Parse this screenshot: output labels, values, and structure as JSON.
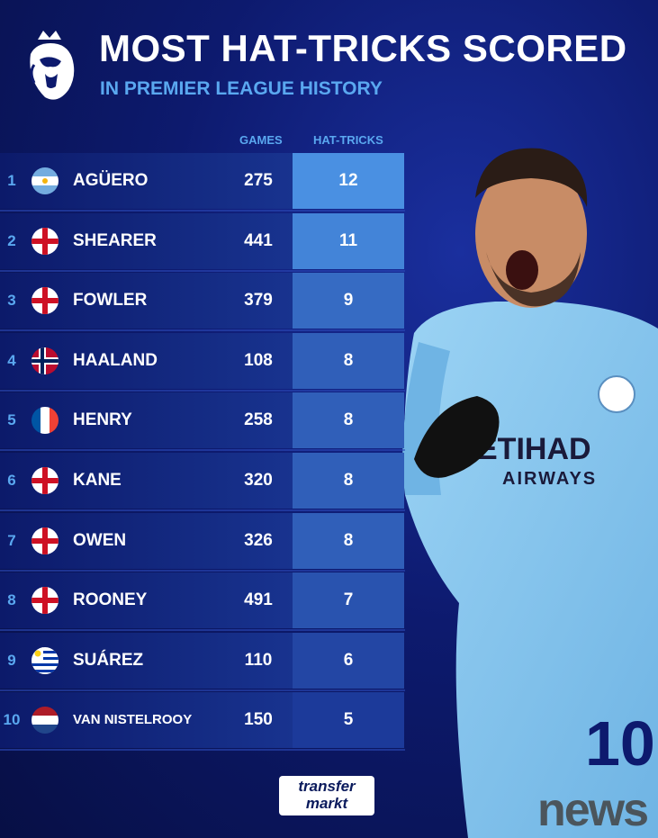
{
  "header": {
    "title": "MOST HAT-TRICKS SCORED",
    "subtitle": "IN PREMIER LEAGUE HISTORY"
  },
  "columns": {
    "games": "GAMES",
    "hat_tricks": "HAT-TRICKS"
  },
  "chart_data": {
    "type": "table",
    "title": "MOST HAT-TRICKS SCORED",
    "subtitle": "IN PREMIER LEAGUE HISTORY",
    "columns": [
      "GAMES",
      "HAT-TRICKS"
    ],
    "rows": [
      {
        "rank": "1",
        "name": "AGÜERO",
        "flag": "argentina",
        "games": "275",
        "hat_tricks": 12
      },
      {
        "rank": "2",
        "name": "SHEARER",
        "flag": "england",
        "games": "441",
        "hat_tricks": 11
      },
      {
        "rank": "3",
        "name": "FOWLER",
        "flag": "england",
        "games": "379",
        "hat_tricks": 9
      },
      {
        "rank": "4",
        "name": "HAALAND",
        "flag": "norway",
        "games": "108",
        "hat_tricks": 8
      },
      {
        "rank": "5",
        "name": "HENRY",
        "flag": "france",
        "games": "258",
        "hat_tricks": 8
      },
      {
        "rank": "6",
        "name": "KANE",
        "flag": "england",
        "games": "320",
        "hat_tricks": 8
      },
      {
        "rank": "7",
        "name": "OWEN",
        "flag": "england",
        "games": "326",
        "hat_tricks": 8
      },
      {
        "rank": "8",
        "name": "ROONEY",
        "flag": "england",
        "games": "491",
        "hat_tricks": 7
      },
      {
        "rank": "9",
        "name": "SUÁREZ",
        "flag": "uruguay",
        "games": "110",
        "hat_tricks": 6
      },
      {
        "rank": "10",
        "name": "VAN NISTELROOY",
        "flag": "netherlands",
        "games": "150",
        "hat_tricks": 5
      }
    ],
    "highlight_color_max": "#4a90e2",
    "highlight_color_min": "#1c3a9a"
  },
  "player_image": {
    "shirt_sponsor_line1": "ETIHAD",
    "shirt_sponsor_line2": "AIRWAYS",
    "shirt_number": "10",
    "icon": "player-celebrating"
  },
  "branding": {
    "tm_line1": "transfer",
    "tm_line2": "markt",
    "watermark": "news"
  },
  "colors": {
    "accent": "#5aa8f0",
    "background": "#0d1a6e",
    "shirt": "#8ecbf0"
  }
}
